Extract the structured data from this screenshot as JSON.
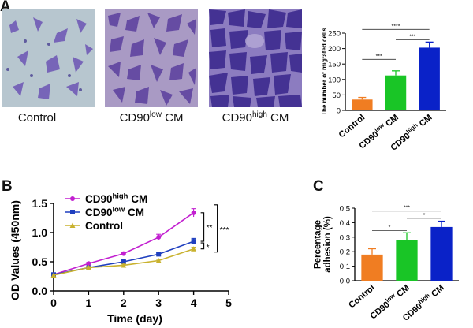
{
  "panels": {
    "a": {
      "letter": "A",
      "images": [
        {
          "label_main": "Control",
          "label_sup": "",
          "label_tail": ""
        },
        {
          "label_main": "CD90",
          "label_sup": "low",
          "label_tail": " CM"
        },
        {
          "label_main": "CD90",
          "label_sup": "high",
          "label_tail": " CM"
        }
      ]
    },
    "b": {
      "letter": "B"
    },
    "c": {
      "letter": "C"
    }
  },
  "colors": {
    "control": "#f07d22",
    "low": "#19c526",
    "high": "#0a22c8",
    "line_high": "#c21fd0",
    "line_low": "#1f3fbf",
    "line_control": "#c9b22f"
  },
  "chart_data": [
    {
      "id": "migration",
      "type": "bar",
      "ylabel": "The number of migrated cells",
      "ylim": [
        0,
        250
      ],
      "yticks": [
        "0",
        "50",
        "100",
        "150",
        "200",
        "250"
      ],
      "categories": [
        {
          "main": "Control",
          "sup": "",
          "tail": ""
        },
        {
          "main": "CD90",
          "sup": "low",
          "tail": " CM"
        },
        {
          "main": "CD90",
          "sup": "high",
          "tail": " CM"
        }
      ],
      "values": [
        35,
        113,
        203
      ],
      "errors": [
        7,
        15,
        18
      ],
      "significance": [
        "***",
        "***",
        "****"
      ]
    },
    {
      "id": "proliferation",
      "type": "line",
      "xlabel": "Time (day)",
      "ylabel": "OD Values (450nm)",
      "xlim": [
        0,
        5
      ],
      "ylim": [
        0,
        1.5
      ],
      "xticks": [
        "0",
        "1",
        "2",
        "3",
        "4",
        "5"
      ],
      "yticks": [
        "0.0",
        "0.5",
        "1.0",
        "1.5"
      ],
      "x": [
        0,
        1,
        2,
        3,
        4
      ],
      "series": [
        {
          "name_main": "CD90",
          "name_sup": "high",
          "name_tail": " CM",
          "values": [
            0.28,
            0.47,
            0.64,
            0.92,
            1.34
          ],
          "errors": [
            0.02,
            0.02,
            0.02,
            0.05,
            0.07
          ]
        },
        {
          "name_main": "CD90",
          "name_sup": "low",
          "name_tail": " CM",
          "values": [
            0.28,
            0.4,
            0.5,
            0.63,
            0.85
          ],
          "errors": [
            0.02,
            0.02,
            0.02,
            0.02,
            0.05
          ]
        },
        {
          "name_main": "Control",
          "name_sup": "",
          "name_tail": "",
          "values": [
            0.27,
            0.4,
            0.44,
            0.52,
            0.72
          ],
          "errors": [
            0.02,
            0.02,
            0.02,
            0.02,
            0.03
          ]
        }
      ],
      "significance": [
        "**",
        "*",
        "***"
      ],
      "legend": "top-left"
    },
    {
      "id": "adhesion",
      "type": "bar",
      "ylabel": "Percentage adhesion (%)",
      "ylim": [
        0,
        0.5
      ],
      "yticks": [
        "0.0",
        "0.1",
        "0.2",
        "0.3",
        "0.4",
        "0.5"
      ],
      "categories": [
        {
          "main": "Control",
          "sup": "",
          "tail": ""
        },
        {
          "main": "CD90",
          "sup": "low",
          "tail": " CM"
        },
        {
          "main": "CD90",
          "sup": "high",
          "tail": " CM"
        }
      ],
      "values": [
        0.18,
        0.28,
        0.37
      ],
      "errors": [
        0.04,
        0.05,
        0.04
      ],
      "significance": [
        "*",
        "*",
        "***"
      ]
    }
  ]
}
